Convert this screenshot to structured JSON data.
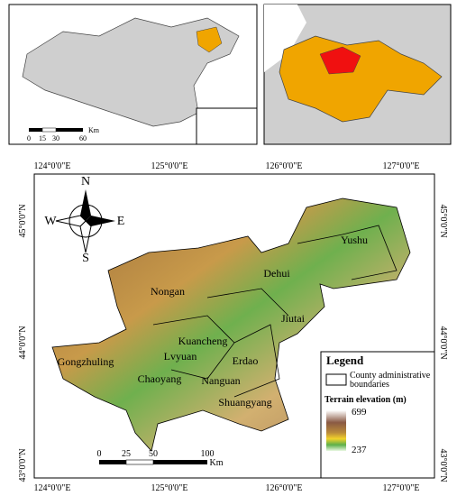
{
  "inset_china": {
    "scale_bar": {
      "ticks": [
        "0",
        "15",
        "30",
        "60"
      ],
      "unit": "Km"
    }
  },
  "main_map": {
    "lon_labels": [
      "124°0'0\"E",
      "125°0'0\"E",
      "126°0'0\"E",
      "127°0'0\"E"
    ],
    "lat_labels": [
      "45°0'0\"N",
      "44°0'0\"N",
      "43°0'0\"N"
    ],
    "compass": {
      "north": "N",
      "south": "S",
      "east": "E",
      "west": "W"
    },
    "counties": [
      "Yushu",
      "Dehui",
      "Nongan",
      "Jiutai",
      "Kuancheng",
      "Lvyuan",
      "Erdao",
      "Gongzhuling",
      "Chaoyang",
      "Nanguan",
      "Shuangyang"
    ],
    "scale_bar": {
      "ticks": [
        "0",
        "25",
        "50",
        "100"
      ],
      "unit": "Km"
    },
    "legend": {
      "title": "Legend",
      "boundary_label": "County administrative boundaries",
      "elevation_title": "Terrain elevation (m)",
      "elevation_max": "699",
      "elevation_min": "237"
    }
  }
}
